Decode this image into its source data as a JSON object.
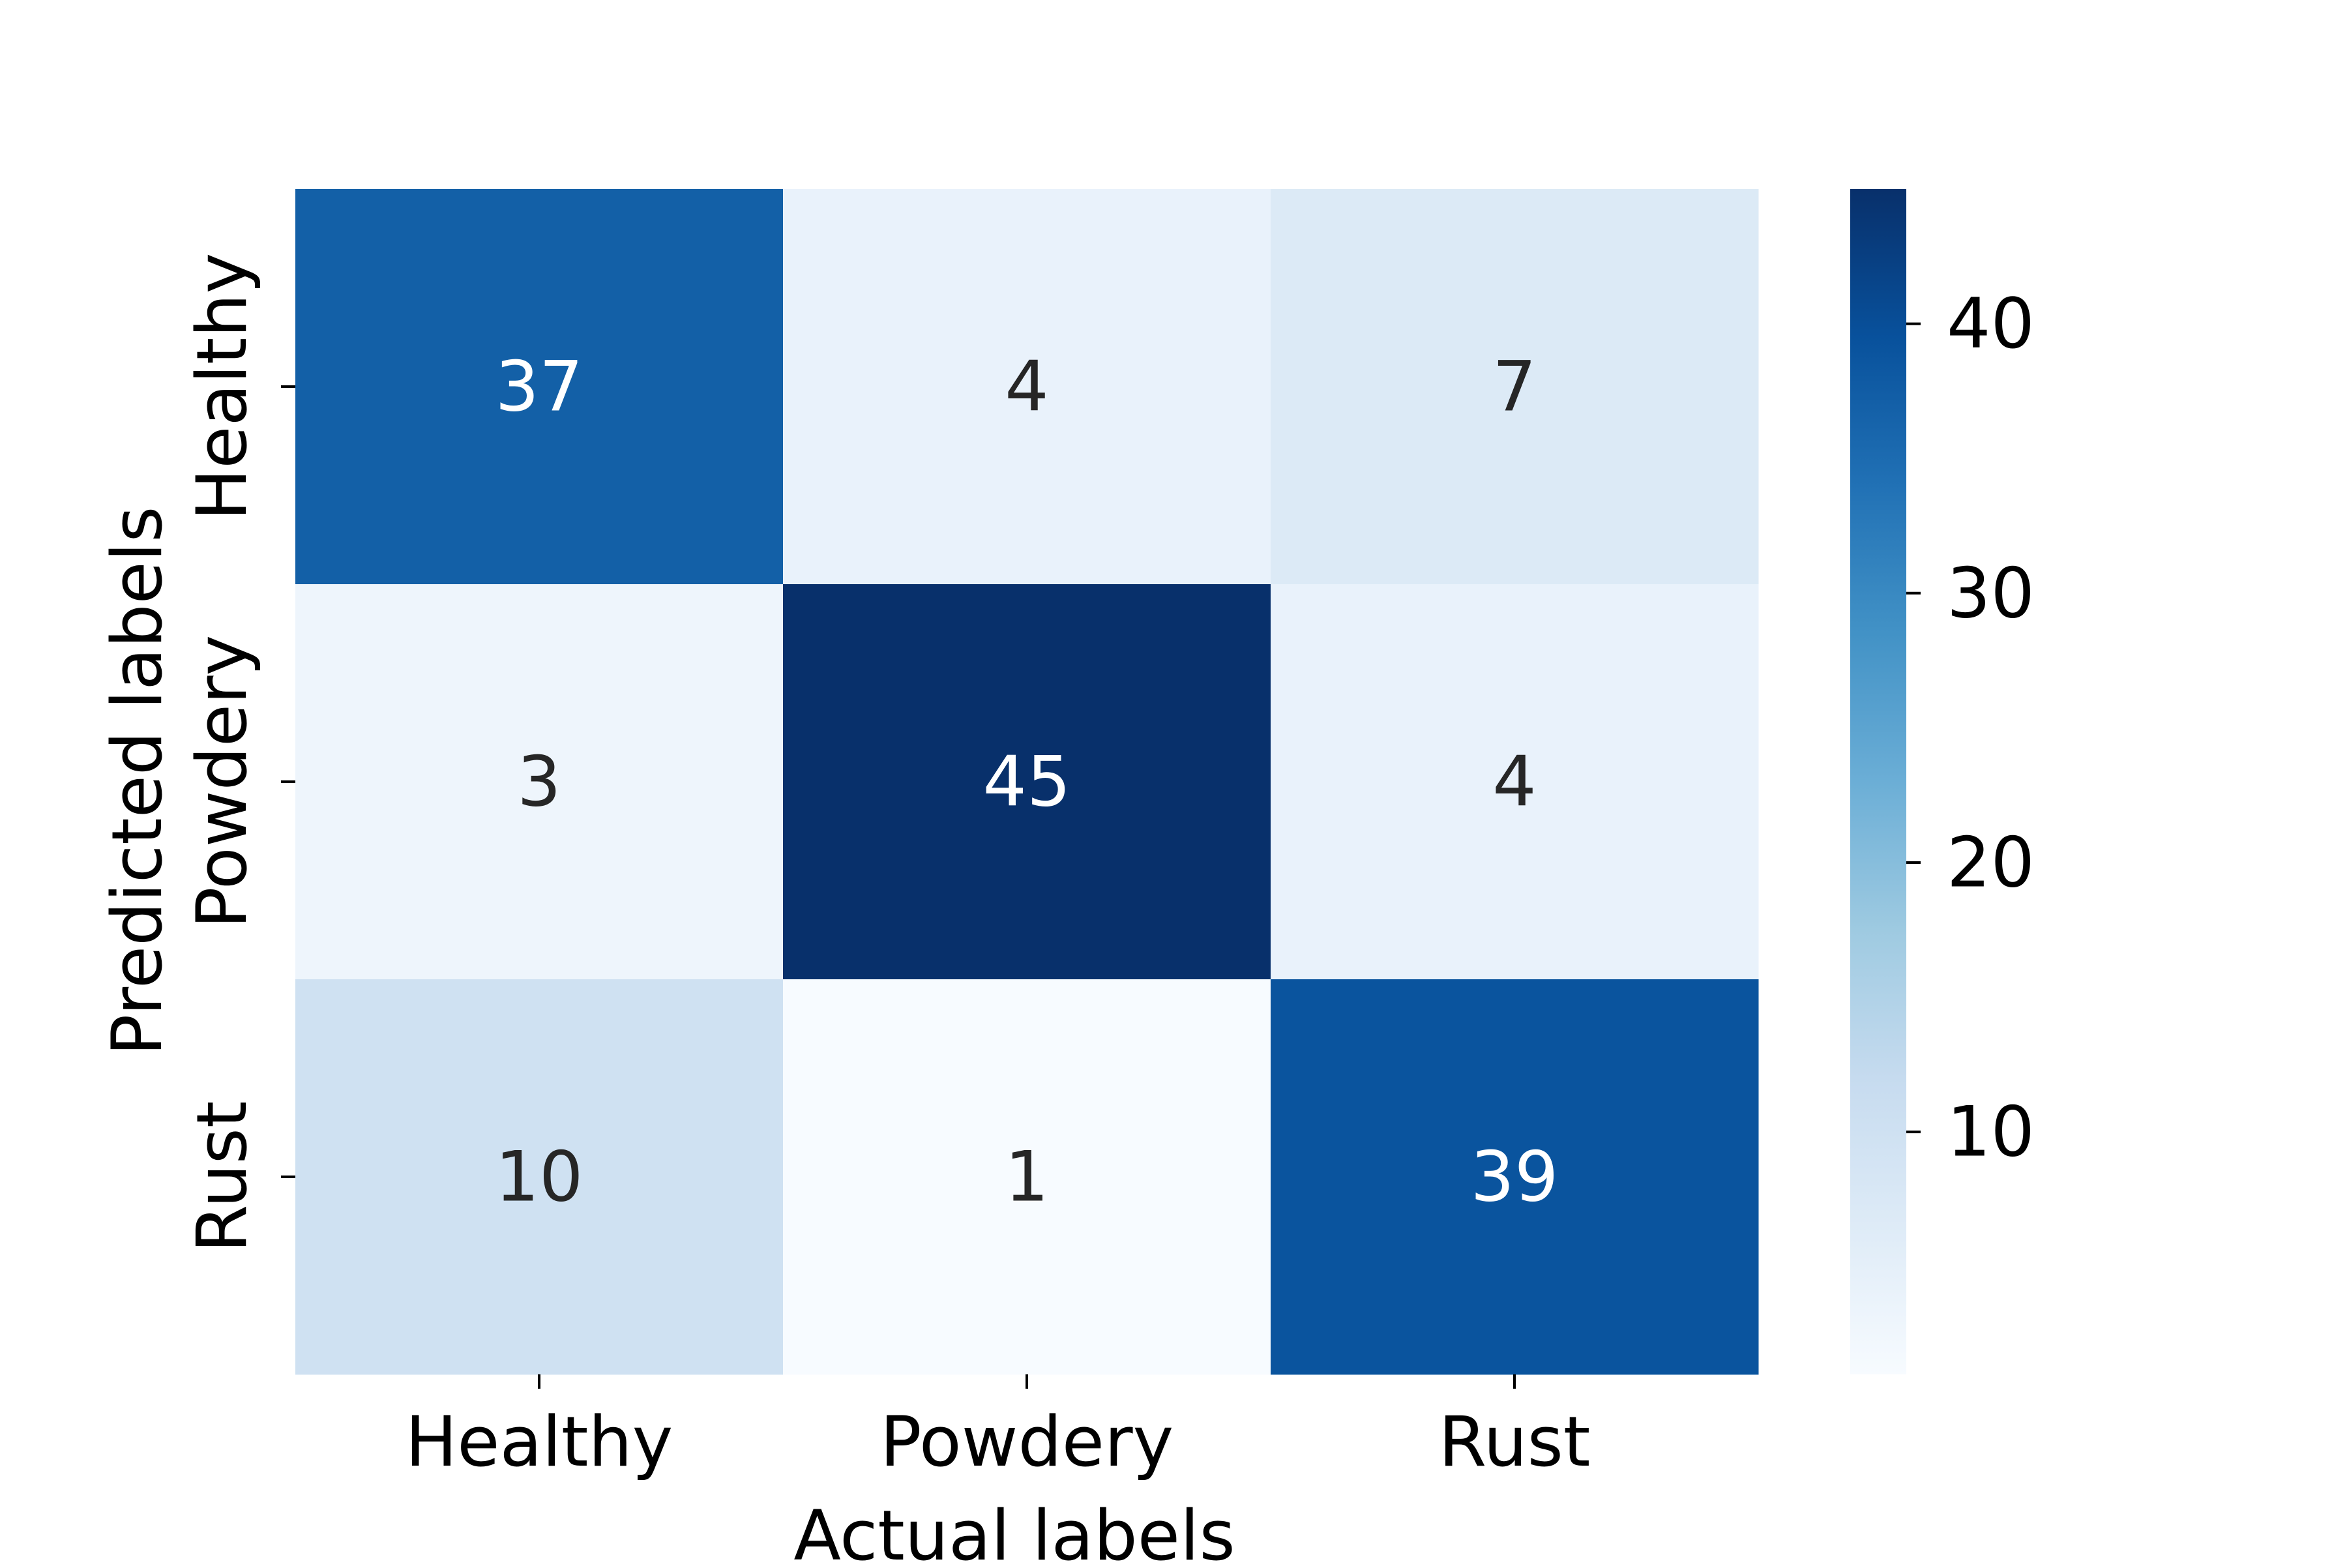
{
  "chart_data": {
    "type": "heatmap",
    "title": "",
    "xlabel": "Actual labels",
    "ylabel": "Predicted labels",
    "x_categories": [
      "Healthy",
      "Powdery",
      "Rust"
    ],
    "y_categories": [
      "Healthy",
      "Powdery",
      "Rust"
    ],
    "values": [
      [
        37,
        4,
        7
      ],
      [
        3,
        45,
        4
      ],
      [
        10,
        1,
        39
      ]
    ],
    "colormap": "Blues",
    "color_range": [
      1,
      45
    ],
    "colorbar": {
      "ticks": [
        10,
        20,
        30,
        40
      ],
      "tick_labels": [
        "10",
        "20",
        "30",
        "40"
      ]
    },
    "colors": {
      "text_on_dark": "#ffffff",
      "text_on_light": "#262626",
      "axis": "#000000"
    }
  }
}
